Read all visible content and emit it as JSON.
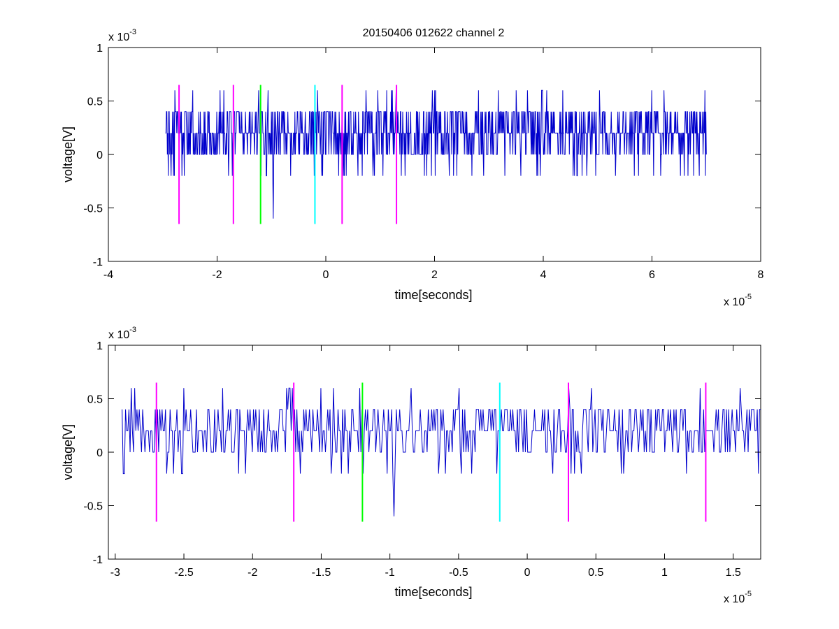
{
  "title": "20150406 012622 channel 2",
  "colors": {
    "trace": "#0000cc",
    "magenta": "#ff00ff",
    "green": "#00ff00",
    "cyan": "#00ffff",
    "axis": "#000000"
  },
  "chart_data": [
    {
      "type": "line",
      "title": "20150406 012622 channel 2",
      "xlabel": "time[seconds]",
      "ylabel": "voltage[V]",
      "x_scale_label": "x 10",
      "x_scale_exp": "-5",
      "y_scale_label": "x 10",
      "y_scale_exp": "-3",
      "xlim": [
        -4,
        8
      ],
      "ylim": [
        -1,
        1
      ],
      "xticks": [
        -4,
        -2,
        0,
        2,
        4,
        6,
        8
      ],
      "xtick_labels": [
        "-4",
        "-2",
        "0",
        "2",
        "4",
        "6",
        "8"
      ],
      "yticks": [
        -1,
        -0.5,
        0,
        0.5,
        1
      ],
      "ytick_labels": [
        "-1",
        "-0.5",
        "0",
        "0.5",
        "1"
      ],
      "grid": false,
      "series": [
        {
          "color": "#0000cc",
          "x_start": -2.95,
          "x_end": 7.0,
          "baseline_levels": [
            0,
            0.2,
            0.4
          ],
          "notable_points": [
            {
              "x": -2.9,
              "y": -0.2
            },
            {
              "x": -2.45,
              "y": 0.6
            },
            {
              "x": -1.2,
              "y": 0.6
            },
            {
              "x": -1.1,
              "y": -0.2
            },
            {
              "x": -0.97,
              "y": -0.6
            },
            {
              "x": 2.0,
              "y": 0.6
            }
          ]
        }
      ],
      "markers": [
        {
          "x": -2.7,
          "color": "magenta",
          "ymin": -0.65,
          "ymax": 0.65
        },
        {
          "x": -1.7,
          "color": "magenta",
          "ymin": -0.65,
          "ymax": 0.65
        },
        {
          "x": -1.2,
          "color": "green",
          "ymin": -0.65,
          "ymax": 0.65
        },
        {
          "x": -0.2,
          "color": "cyan",
          "ymin": -0.65,
          "ymax": 0.65
        },
        {
          "x": 0.3,
          "color": "magenta",
          "ymin": -0.65,
          "ymax": 0.65
        },
        {
          "x": 1.3,
          "color": "magenta",
          "ymin": -0.65,
          "ymax": 0.65
        }
      ]
    },
    {
      "type": "line",
      "title": "",
      "xlabel": "time[seconds]",
      "ylabel": "voltage[V]",
      "x_scale_label": "x 10",
      "x_scale_exp": "-5",
      "y_scale_label": "x 10",
      "y_scale_exp": "-3",
      "xlim": [
        -3.05,
        1.7
      ],
      "ylim": [
        -1,
        1
      ],
      "xticks": [
        -3,
        -2.5,
        -2,
        -1.5,
        -1,
        -0.5,
        0,
        0.5,
        1,
        1.5
      ],
      "xtick_labels": [
        "-3",
        "-2.5",
        "-2",
        "-1.5",
        "-1",
        "-0.5",
        "0",
        "0.5",
        "1",
        "1.5"
      ],
      "yticks": [
        -1,
        -0.5,
        0,
        0.5,
        1
      ],
      "ytick_labels": [
        "-1",
        "-0.5",
        "0",
        "0.5",
        "1"
      ],
      "grid": false,
      "series": [
        {
          "color": "#0000cc",
          "x_start": -2.95,
          "x_end": 1.7,
          "baseline_levels": [
            0,
            0.2,
            0.4
          ],
          "notable_points": [
            {
              "x": -2.93,
              "y": -0.2
            },
            {
              "x": -2.5,
              "y": 0.6
            },
            {
              "x": -1.3,
              "y": -0.2
            },
            {
              "x": -1.22,
              "y": 0.6
            },
            {
              "x": -0.97,
              "y": -0.6
            },
            {
              "x": 0.47,
              "y": 0.6
            },
            {
              "x": 1.55,
              "y": 0.6
            },
            {
              "x": 1.68,
              "y": -0.2
            }
          ]
        }
      ],
      "markers": [
        {
          "x": -2.7,
          "color": "magenta",
          "ymin": -0.65,
          "ymax": 0.65
        },
        {
          "x": -1.7,
          "color": "magenta",
          "ymin": -0.65,
          "ymax": 0.65
        },
        {
          "x": -1.2,
          "color": "green",
          "ymin": -0.65,
          "ymax": 0.65
        },
        {
          "x": -0.2,
          "color": "cyan",
          "ymin": -0.65,
          "ymax": 0.65
        },
        {
          "x": 0.3,
          "color": "magenta",
          "ymin": -0.65,
          "ymax": 0.65
        },
        {
          "x": 1.3,
          "color": "magenta",
          "ymin": -0.65,
          "ymax": 0.65
        }
      ]
    }
  ]
}
